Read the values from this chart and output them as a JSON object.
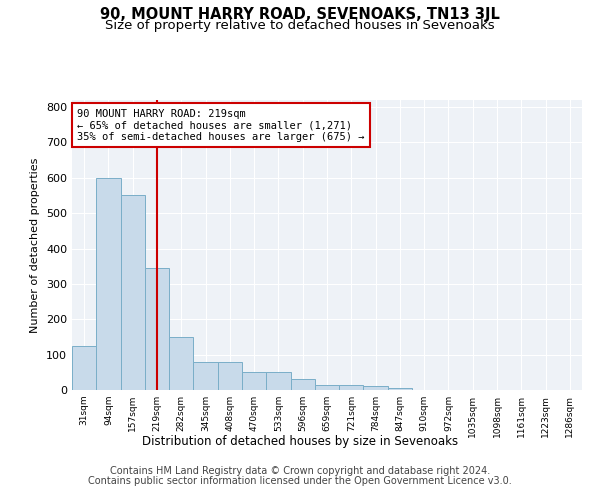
{
  "title": "90, MOUNT HARRY ROAD, SEVENOAKS, TN13 3JL",
  "subtitle": "Size of property relative to detached houses in Sevenoaks",
  "xlabel": "Distribution of detached houses by size in Sevenoaks",
  "ylabel": "Number of detached properties",
  "bar_labels": [
    "31sqm",
    "94sqm",
    "157sqm",
    "219sqm",
    "282sqm",
    "345sqm",
    "408sqm",
    "470sqm",
    "533sqm",
    "596sqm",
    "659sqm",
    "721sqm",
    "784sqm",
    "847sqm",
    "910sqm",
    "972sqm",
    "1035sqm",
    "1098sqm",
    "1161sqm",
    "1223sqm",
    "1286sqm"
  ],
  "bar_values": [
    125,
    600,
    550,
    345,
    150,
    78,
    78,
    52,
    52,
    30,
    15,
    15,
    12,
    5,
    0,
    0,
    0,
    0,
    0,
    0,
    0
  ],
  "bar_color": "#c8daea",
  "bar_edge_color": "#7aaec8",
  "red_line_index": 3,
  "annotation_line1": "90 MOUNT HARRY ROAD: 219sqm",
  "annotation_line2": "← 65% of detached houses are smaller (1,271)",
  "annotation_line3": "35% of semi-detached houses are larger (675) →",
  "annotation_box_color": "#ffffff",
  "annotation_box_edge_color": "#cc0000",
  "red_line_color": "#cc0000",
  "yticks": [
    0,
    100,
    200,
    300,
    400,
    500,
    600,
    700,
    800
  ],
  "ylim": [
    0,
    820
  ],
  "footer_line1": "Contains HM Land Registry data © Crown copyright and database right 2024.",
  "footer_line2": "Contains public sector information licensed under the Open Government Licence v3.0.",
  "background_color": "#ffffff",
  "plot_bg_color": "#eef2f7",
  "grid_color": "#ffffff",
  "title_fontsize": 10.5,
  "subtitle_fontsize": 9.5,
  "footer_fontsize": 7.0,
  "annotation_fontsize": 7.5
}
